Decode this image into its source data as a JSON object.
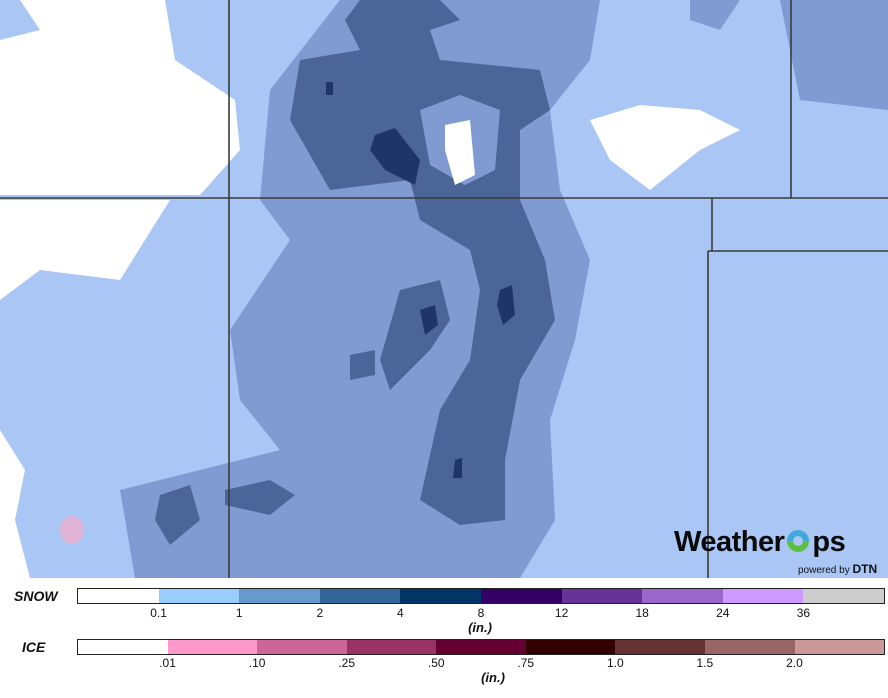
{
  "map": {
    "colors": {
      "background": "#a9c6f5",
      "level1": "#7f9bd2",
      "level2": "#4b6598",
      "level3": "#1f3567",
      "none": "#ffffff",
      "ice": "#e0a6cf",
      "border": "#3b3b3b"
    }
  },
  "logo": {
    "brand": "WeatherOps",
    "brand_left": "Weather",
    "brand_right": "ps",
    "powered_by": "powered by",
    "dtn": "DTN"
  },
  "legend": {
    "snow": {
      "label": "SNOW",
      "unit": "(in.)",
      "colors": [
        "#ffffff",
        "#99ccff",
        "#6699cc",
        "#336699",
        "#003366",
        "#330066",
        "#663399",
        "#9966cc",
        "#cc99ff",
        "#cccccc"
      ],
      "ticks": [
        "0.1",
        "1",
        "2",
        "4",
        "8",
        "12",
        "18",
        "24",
        "36"
      ]
    },
    "ice": {
      "label": "ICE",
      "unit": "(in.)",
      "colors": [
        "#ffffff",
        "#ff99cc",
        "#cc6699",
        "#993366",
        "#660033",
        "#330000",
        "#663333",
        "#996666",
        "#cc9999"
      ],
      "ticks": [
        ".01",
        ".10",
        ".25",
        ".50",
        ".75",
        "1.0",
        "1.5",
        "2.0"
      ]
    }
  }
}
